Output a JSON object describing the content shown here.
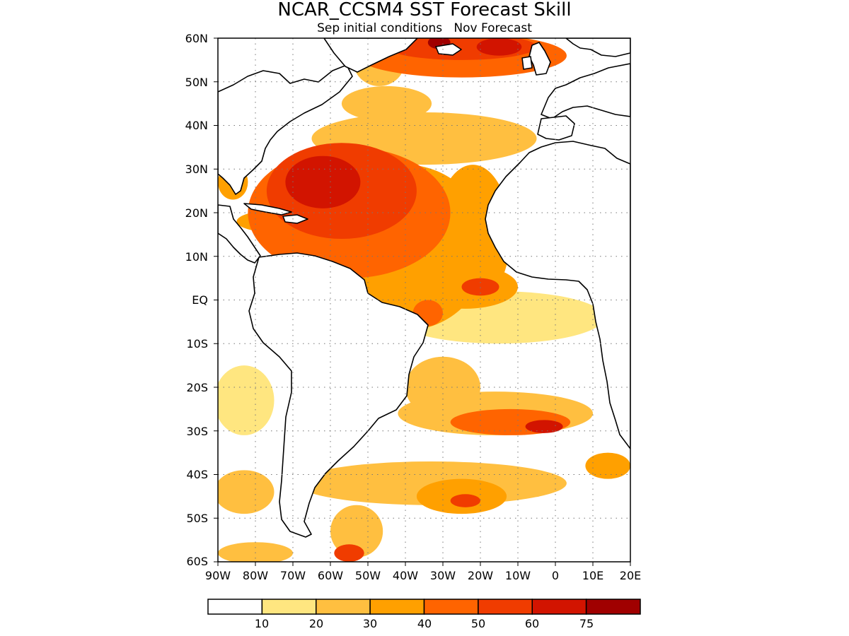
{
  "title": "NCAR_CCSM4 SST Forecast Skill",
  "subtitle": "Sep initial conditions   Nov Forecast",
  "map": {
    "lon_range": [
      -90,
      20
    ],
    "lat_range": [
      -60,
      60
    ],
    "lon_ticks": [
      "90W",
      "80W",
      "70W",
      "60W",
      "50W",
      "40W",
      "30W",
      "20W",
      "10W",
      "0",
      "10E",
      "20E"
    ],
    "lat_ticks": [
      "60N",
      "50N",
      "40N",
      "30N",
      "20N",
      "10N",
      "EQ",
      "10S",
      "20S",
      "30S",
      "40S",
      "50S",
      "60S"
    ],
    "gridlines": "dotted"
  },
  "colorbar": {
    "colors": [
      "#ffffff",
      "#ffe680",
      "#ffbf40",
      "#ffa000",
      "#ff6400",
      "#f03c00",
      "#d21400",
      "#a00000"
    ],
    "labels": [
      "10",
      "20",
      "30",
      "40",
      "50",
      "60",
      "75"
    ]
  },
  "chart_data": {
    "type": "heatmap",
    "title": "NCAR_CCSM4 SST Forecast Skill",
    "subtitle": "Sep initial conditions   Nov Forecast",
    "x": {
      "range": [
        -90,
        20
      ],
      "ticks": [
        "90W",
        "80W",
        "70W",
        "60W",
        "50W",
        "40W",
        "30W",
        "20W",
        "10W",
        "0",
        "10E",
        "20E"
      ]
    },
    "y": {
      "range": [
        -60,
        60
      ],
      "ticks": [
        "60N",
        "50N",
        "40N",
        "30N",
        "20N",
        "10N",
        "EQ",
        "10S",
        "20S",
        "30S",
        "40S",
        "50S",
        "60S"
      ]
    },
    "levels": [
      10,
      20,
      30,
      40,
      50,
      60,
      75
    ],
    "grid": true,
    "legend": "bottom colorbar",
    "skill_regions": [
      {
        "lon": -62,
        "lat": 27,
        "rx": 10,
        "ry": 6,
        "level": 6
      },
      {
        "lon": -57,
        "lat": 25,
        "rx": 20,
        "ry": 11,
        "level": 5
      },
      {
        "lon": -55,
        "lat": 20,
        "rx": 27,
        "ry": 15,
        "level": 4
      },
      {
        "lon": -40,
        "lat": 12,
        "rx": 22,
        "ry": 19,
        "level": 3
      },
      {
        "lon": -22,
        "lat": 15,
        "rx": 10,
        "ry": 16,
        "level": 3
      },
      {
        "lon": -35,
        "lat": 37,
        "rx": 30,
        "ry": 6,
        "level": 2
      },
      {
        "lon": -45,
        "lat": 45,
        "rx": 12,
        "ry": 4,
        "level": 2
      },
      {
        "lon": -25,
        "lat": 56,
        "rx": 28,
        "ry": 5,
        "level": 4
      },
      {
        "lon": -25,
        "lat": 58,
        "rx": 20,
        "ry": 3,
        "level": 5
      },
      {
        "lon": -31,
        "lat": 59,
        "rx": 3,
        "ry": 1.5,
        "level": 7
      },
      {
        "lon": -15,
        "lat": 58,
        "rx": 6,
        "ry": 2,
        "level": 6
      },
      {
        "lon": -47,
        "lat": 55,
        "rx": 7,
        "ry": 6,
        "level": 2
      },
      {
        "lon": -75,
        "lat": 18,
        "rx": 10,
        "ry": 2.5,
        "level": 3
      },
      {
        "lon": -86,
        "lat": 27,
        "rx": 4,
        "ry": 4,
        "level": 3
      },
      {
        "lon": -24,
        "lat": 3,
        "rx": 14,
        "ry": 5,
        "level": 3
      },
      {
        "lon": -20,
        "lat": 3,
        "rx": 5,
        "ry": 2,
        "level": 5
      },
      {
        "lon": -34,
        "lat": -3,
        "rx": 4,
        "ry": 3,
        "level": 4
      },
      {
        "lon": -15,
        "lat": -4,
        "rx": 28,
        "ry": 6,
        "level": 1
      },
      {
        "lon": -30,
        "lat": -20,
        "rx": 10,
        "ry": 7,
        "level": 2
      },
      {
        "lon": -16,
        "lat": -26,
        "rx": 26,
        "ry": 5,
        "level": 2
      },
      {
        "lon": -12,
        "lat": -28,
        "rx": 16,
        "ry": 3,
        "level": 4
      },
      {
        "lon": -3,
        "lat": -29,
        "rx": 5,
        "ry": 1.5,
        "level": 6
      },
      {
        "lon": -83,
        "lat": -23,
        "rx": 8,
        "ry": 8,
        "level": 1
      },
      {
        "lon": -33,
        "lat": -42,
        "rx": 36,
        "ry": 5,
        "level": 2
      },
      {
        "lon": -25,
        "lat": -45,
        "rx": 12,
        "ry": 4,
        "level": 3
      },
      {
        "lon": -24,
        "lat": -46,
        "rx": 4,
        "ry": 1.5,
        "level": 5
      },
      {
        "lon": 14,
        "lat": -38,
        "rx": 6,
        "ry": 3,
        "level": 3
      },
      {
        "lon": -83,
        "lat": -44,
        "rx": 8,
        "ry": 5,
        "level": 2
      },
      {
        "lon": -53,
        "lat": -53,
        "rx": 7,
        "ry": 6,
        "level": 2
      },
      {
        "lon": -55,
        "lat": -58,
        "rx": 4,
        "ry": 2,
        "level": 5
      },
      {
        "lon": -80,
        "lat": -58,
        "rx": 10,
        "ry": 2.5,
        "level": 2
      }
    ]
  }
}
